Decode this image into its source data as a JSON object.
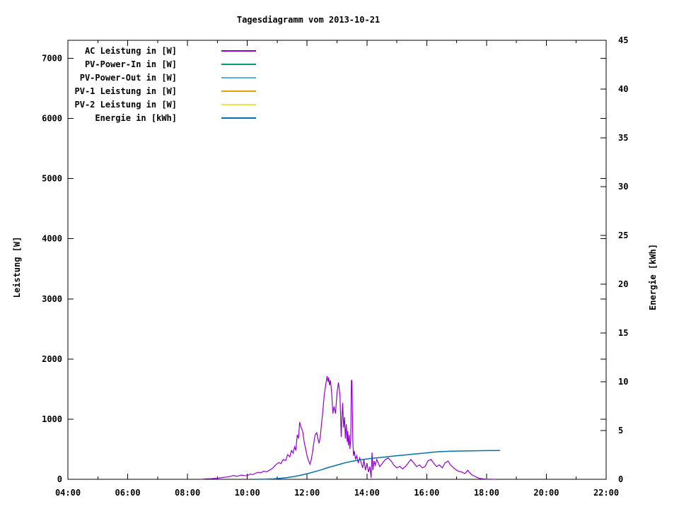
{
  "title": "Tagesdiagramm vom 2013-10-21",
  "axes": {
    "x": {
      "tick_hours": [
        4,
        6,
        8,
        10,
        12,
        14,
        16,
        18,
        20,
        22
      ],
      "tick_labels": [
        "04:00",
        "06:00",
        "08:00",
        "10:00",
        "12:00",
        "14:00",
        "16:00",
        "18:00",
        "20:00",
        "22:00"
      ],
      "minor_hours": [
        5,
        7,
        9,
        11,
        13,
        15,
        17,
        19,
        21
      ]
    },
    "y_left": {
      "title": "Leistung [W]",
      "ticks": [
        0,
        1000,
        2000,
        3000,
        4000,
        5000,
        6000,
        7000
      ]
    },
    "y_right": {
      "title": "Energie [kWh]",
      "ticks": [
        0,
        5,
        10,
        15,
        20,
        25,
        30,
        35,
        40,
        45
      ]
    }
  },
  "legend": [
    {
      "label": "AC Leistung in [W]",
      "color": "#9400d3"
    },
    {
      "label": "PV-Power-In in [W]",
      "color": "#009e73"
    },
    {
      "label": "PV-Power-Out in [W]",
      "color": "#56b4e9"
    },
    {
      "label": "PV-1 Leistung in [W]",
      "color": "#e69f00"
    },
    {
      "label": "PV-2 Leistung in [W]",
      "color": "#f0e442"
    },
    {
      "label": "Energie in [kWh]",
      "color": "#0072b2"
    }
  ],
  "chart_data": {
    "type": "line",
    "title": "Tagesdiagramm vom 2013-10-21",
    "xlabel": "",
    "ylabel_left": "Leistung [W]",
    "ylabel_right": "Energie [kWh]",
    "x_range": [
      4,
      22
    ],
    "y_left_range": [
      0,
      7300
    ],
    "y_right_range": [
      0,
      45
    ],
    "grid": false,
    "legend_position": "top-left",
    "series": [
      {
        "name": "AC Leistung in [W]",
        "color": "#9400d3",
        "axis": "left",
        "width": 1.2,
        "points": [
          [
            8.45,
            0
          ],
          [
            8.6,
            8
          ],
          [
            8.8,
            10
          ],
          [
            9.0,
            18
          ],
          [
            9.15,
            28
          ],
          [
            9.3,
            38
          ],
          [
            9.45,
            50
          ],
          [
            9.55,
            65
          ],
          [
            9.62,
            50
          ],
          [
            9.7,
            55
          ],
          [
            9.8,
            70
          ],
          [
            9.9,
            62
          ],
          [
            10.0,
            60
          ],
          [
            10.1,
            88
          ],
          [
            10.18,
            78
          ],
          [
            10.27,
            100
          ],
          [
            10.35,
            115
          ],
          [
            10.45,
            108
          ],
          [
            10.55,
            135
          ],
          [
            10.65,
            125
          ],
          [
            10.75,
            155
          ],
          [
            10.85,
            185
          ],
          [
            10.95,
            240
          ],
          [
            11.05,
            280
          ],
          [
            11.12,
            260
          ],
          [
            11.2,
            330
          ],
          [
            11.28,
            310
          ],
          [
            11.35,
            410
          ],
          [
            11.42,
            375
          ],
          [
            11.48,
            480
          ],
          [
            11.53,
            435
          ],
          [
            11.58,
            540
          ],
          [
            11.62,
            480
          ],
          [
            11.67,
            740
          ],
          [
            11.71,
            680
          ],
          [
            11.75,
            950
          ],
          [
            11.8,
            860
          ],
          [
            11.85,
            800
          ],
          [
            11.9,
            625
          ],
          [
            11.95,
            505
          ],
          [
            12.0,
            390
          ],
          [
            12.05,
            305
          ],
          [
            12.1,
            250
          ],
          [
            12.14,
            330
          ],
          [
            12.18,
            445
          ],
          [
            12.23,
            625
          ],
          [
            12.27,
            740
          ],
          [
            12.32,
            775
          ],
          [
            12.36,
            680
          ],
          [
            12.4,
            600
          ],
          [
            12.44,
            705
          ],
          [
            12.48,
            915
          ],
          [
            12.53,
            1150
          ],
          [
            12.57,
            1390
          ],
          [
            12.62,
            1565
          ],
          [
            12.67,
            1715
          ],
          [
            12.7,
            1620
          ],
          [
            12.72,
            1690
          ],
          [
            12.75,
            1565
          ],
          [
            12.78,
            1645
          ],
          [
            12.82,
            1445
          ],
          [
            12.86,
            1095
          ],
          [
            12.9,
            1210
          ],
          [
            12.95,
            1095
          ],
          [
            13.0,
            1445
          ],
          [
            13.05,
            1610
          ],
          [
            13.1,
            1390
          ],
          [
            13.14,
            705
          ],
          [
            13.17,
            1095
          ],
          [
            13.19,
            1270
          ],
          [
            13.22,
            860
          ],
          [
            13.25,
            1035
          ],
          [
            13.28,
            680
          ],
          [
            13.31,
            915
          ],
          [
            13.34,
            625
          ],
          [
            13.36,
            800
          ],
          [
            13.38,
            565
          ],
          [
            13.41,
            740
          ],
          [
            13.43,
            505
          ],
          [
            13.46,
            655
          ],
          [
            13.48,
            1645
          ],
          [
            13.5,
            1645
          ],
          [
            13.53,
            625
          ],
          [
            13.55,
            390
          ],
          [
            13.58,
            470
          ],
          [
            13.62,
            330
          ],
          [
            13.66,
            390
          ],
          [
            13.71,
            270
          ],
          [
            13.76,
            355
          ],
          [
            13.81,
            270
          ],
          [
            13.86,
            190
          ],
          [
            13.9,
            330
          ],
          [
            13.95,
            150
          ],
          [
            14.0,
            270
          ],
          [
            14.05,
            120
          ],
          [
            14.1,
            210
          ],
          [
            14.14,
            25
          ],
          [
            14.17,
            445
          ],
          [
            14.2,
            150
          ],
          [
            14.24,
            305
          ],
          [
            14.28,
            235
          ],
          [
            14.33,
            330
          ],
          [
            14.38,
            270
          ],
          [
            14.43,
            210
          ],
          [
            14.52,
            270
          ],
          [
            14.62,
            330
          ],
          [
            14.71,
            355
          ],
          [
            14.81,
            305
          ],
          [
            14.9,
            235
          ],
          [
            15.0,
            190
          ],
          [
            15.1,
            215
          ],
          [
            15.19,
            175
          ],
          [
            15.29,
            215
          ],
          [
            15.38,
            270
          ],
          [
            15.47,
            330
          ],
          [
            15.57,
            270
          ],
          [
            15.66,
            210
          ],
          [
            15.76,
            240
          ],
          [
            15.85,
            190
          ],
          [
            15.95,
            215
          ],
          [
            16.04,
            305
          ],
          [
            16.14,
            330
          ],
          [
            16.23,
            270
          ],
          [
            16.33,
            210
          ],
          [
            16.42,
            240
          ],
          [
            16.52,
            190
          ],
          [
            16.61,
            270
          ],
          [
            16.71,
            305
          ],
          [
            16.8,
            235
          ],
          [
            16.9,
            190
          ],
          [
            17.0,
            150
          ],
          [
            17.09,
            130
          ],
          [
            17.18,
            120
          ],
          [
            17.28,
            95
          ],
          [
            17.37,
            150
          ],
          [
            17.42,
            120
          ],
          [
            17.52,
            70
          ],
          [
            17.61,
            50
          ],
          [
            17.71,
            25
          ],
          [
            17.8,
            12
          ],
          [
            17.95,
            5
          ],
          [
            18.1,
            3
          ],
          [
            18.3,
            0
          ]
        ]
      },
      {
        "name": "PV-Power-In in [W]",
        "color": "#009e73",
        "axis": "left",
        "width": 1.2,
        "points": []
      },
      {
        "name": "PV-Power-Out in [W]",
        "color": "#56b4e9",
        "axis": "left",
        "width": 1.2,
        "points": []
      },
      {
        "name": "PV-1 Leistung in [W]",
        "color": "#e69f00",
        "axis": "left",
        "width": 1.2,
        "points": []
      },
      {
        "name": "PV-2 Leistung in [W]",
        "color": "#f0e442",
        "axis": "left",
        "width": 1.2,
        "points": []
      },
      {
        "name": "Energie in [kWh]",
        "color": "#0072b2",
        "axis": "right",
        "width": 1.5,
        "points": [
          [
            10.3,
            0
          ],
          [
            10.6,
            0.02
          ],
          [
            10.9,
            0.06
          ],
          [
            11.1,
            0.1
          ],
          [
            11.3,
            0.16
          ],
          [
            11.5,
            0.25
          ],
          [
            11.7,
            0.36
          ],
          [
            11.9,
            0.5
          ],
          [
            12.1,
            0.65
          ],
          [
            12.3,
            0.82
          ],
          [
            12.5,
            1.0
          ],
          [
            12.7,
            1.2
          ],
          [
            12.9,
            1.38
          ],
          [
            13.1,
            1.55
          ],
          [
            13.3,
            1.72
          ],
          [
            13.5,
            1.85
          ],
          [
            13.7,
            1.95
          ],
          [
            13.9,
            2.05
          ],
          [
            14.1,
            2.13
          ],
          [
            14.4,
            2.22
          ],
          [
            14.7,
            2.32
          ],
          [
            15.0,
            2.42
          ],
          [
            15.3,
            2.5
          ],
          [
            15.6,
            2.6
          ],
          [
            15.9,
            2.68
          ],
          [
            16.2,
            2.78
          ],
          [
            16.5,
            2.85
          ],
          [
            16.8,
            2.88
          ],
          [
            17.1,
            2.9
          ],
          [
            17.5,
            2.92
          ],
          [
            18.0,
            2.94
          ],
          [
            18.45,
            2.95
          ]
        ]
      }
    ]
  }
}
